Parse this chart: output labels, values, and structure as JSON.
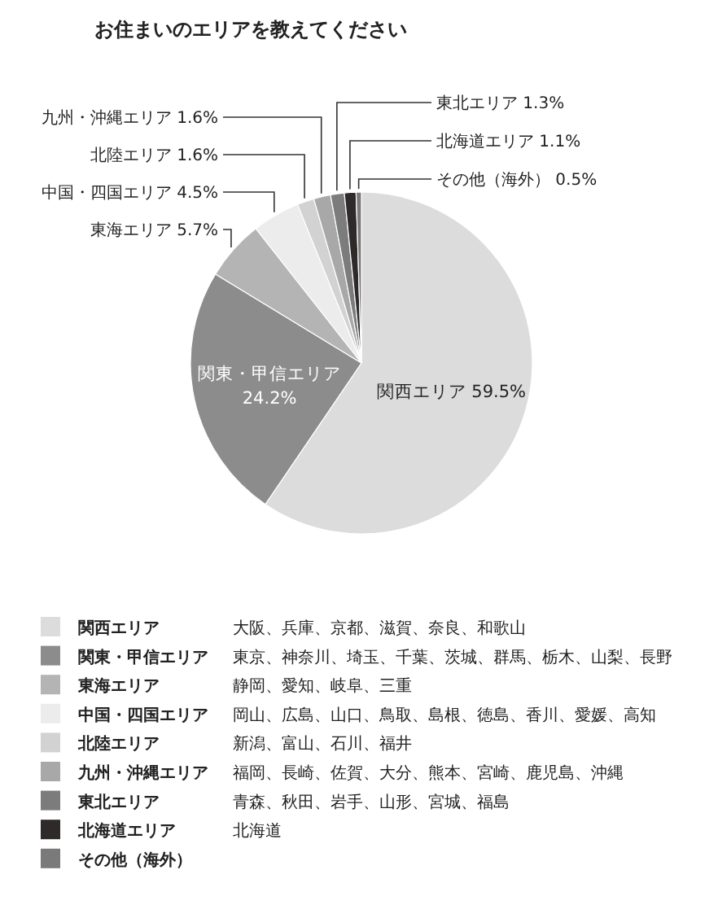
{
  "chart_data": {
    "type": "pie",
    "title": "お住まいのエリアを教えてください",
    "categories": [
      "関西エリア",
      "関東・甲信エリア",
      "東海エリア",
      "中国・四国エリア",
      "北陸エリア",
      "九州・沖縄エリア",
      "東北エリア",
      "北海道エリア",
      "その他（海外）"
    ],
    "values": [
      59.5,
      24.2,
      5.7,
      4.5,
      1.6,
      1.6,
      1.3,
      1.1,
      0.5
    ],
    "value_labels": [
      "59.5%",
      "24.2%",
      "5.7%",
      "4.5%",
      "1.6%",
      "1.6%",
      "1.3%",
      "1.1%",
      "0.5%"
    ],
    "colors": [
      "#dcdcdc",
      "#8c8c8c",
      "#b4b4b4",
      "#ececec",
      "#d2d2d2",
      "#a8a8a8",
      "#7c7c7c",
      "#2e2a2a",
      "#7a7a7a"
    ],
    "legend": "bottom",
    "annotations": [
      "大阪、兵庫、京都、滋賀、奈良、和歌山",
      "東京、神奈川、埼玉、千葉、茨城、群馬、栃木、山梨、長野",
      "静岡、愛知、岐阜、三重",
      "岡山、広島、山口、鳥取、島根、徳島、香川、愛媛、高知",
      "新潟、富山、石川、福井",
      "福岡、長崎、佐賀、大分、熊本、宮崎、鹿児島、沖縄",
      "青森、秋田、岩手、山形、宮城、福島",
      "北海道"
    ]
  }
}
